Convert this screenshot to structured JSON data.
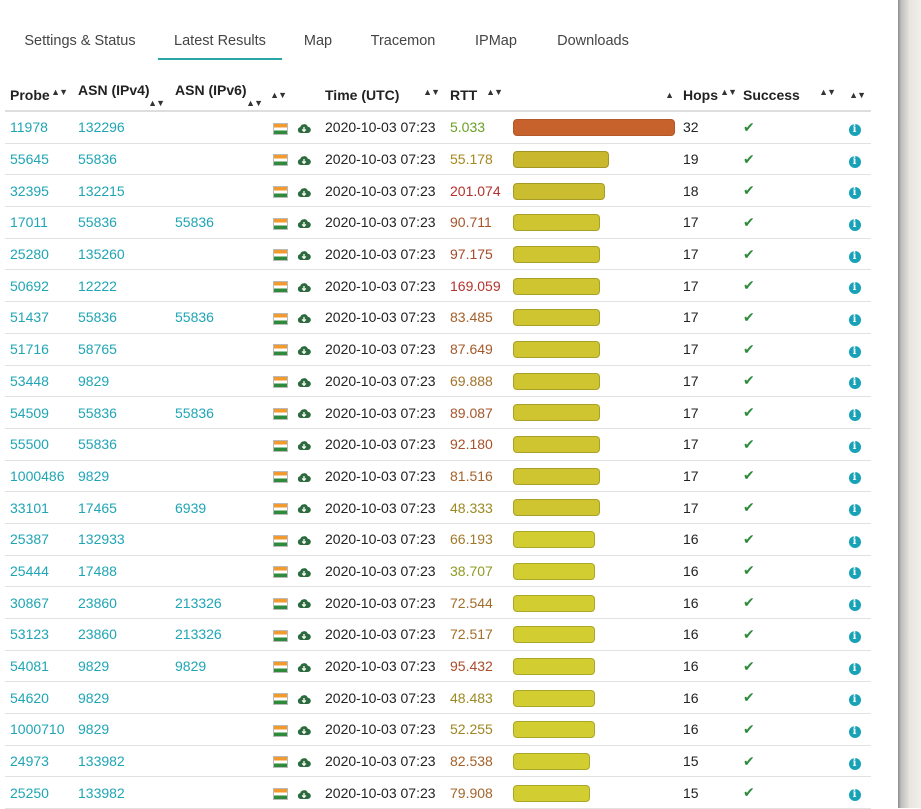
{
  "tabs": [
    {
      "label": "Settings & Status",
      "active": false
    },
    {
      "label": "Latest Results",
      "active": true
    },
    {
      "label": "Map",
      "active": false
    },
    {
      "label": "Tracemon",
      "active": false
    },
    {
      "label": "IPMap",
      "active": false
    },
    {
      "label": "Downloads",
      "active": false
    }
  ],
  "table": {
    "headers": {
      "probe": "Probe",
      "asn4": "ASN (IPv4)",
      "asn6": "ASN (IPv6)",
      "time": "Time (UTC)",
      "rtt": "RTT",
      "hops": "Hops",
      "success": "Success"
    },
    "sort_indicator": "▲▼",
    "sorted_indicator": "▲",
    "check_glyph": "✔",
    "info_glyph": "i",
    "colors": {
      "link": "#1fa5b5",
      "tab_underline": "#2aa6a6",
      "success": "#2e8b3c",
      "info": "#17a2b8"
    },
    "rows": [
      {
        "probe": "11978",
        "probe_link": true,
        "asn4": "132296",
        "asn6": "",
        "time": "2020-10-03 07:23",
        "rtt": "5.033",
        "rtt_color": "#6aa024",
        "bar_color": "#c8622d",
        "bar_fraction": 1.0,
        "hops": "32"
      },
      {
        "probe": "55645",
        "probe_link": true,
        "asn4": "55836",
        "asn6": "",
        "time": "2020-10-03 07:23",
        "rtt": "55.178",
        "rtt_color": "#a6881e",
        "bar_color": "#c9b82e",
        "bar_fraction": 0.59,
        "hops": "19"
      },
      {
        "probe": "32395",
        "probe_link": true,
        "asn4": "132215",
        "asn6": "",
        "time": "2020-10-03 07:23",
        "rtt": "201.074",
        "rtt_color": "#b5302c",
        "bar_color": "#cbbd30",
        "bar_fraction": 0.56,
        "hops": "18"
      },
      {
        "probe": "17011",
        "probe_link": true,
        "asn4": "55836",
        "asn6": "55836",
        "time": "2020-10-03 07:23",
        "rtt": "90.711",
        "rtt_color": "#a6542a",
        "bar_color": "#cfc530",
        "bar_fraction": 0.53,
        "hops": "17"
      },
      {
        "probe": "25280",
        "probe_link": true,
        "asn4": "135260",
        "asn6": "",
        "time": "2020-10-03 07:23",
        "rtt": "97.175",
        "rtt_color": "#a84a2a",
        "bar_color": "#cfc530",
        "bar_fraction": 0.53,
        "hops": "17"
      },
      {
        "probe": "50692",
        "probe_link": true,
        "asn4": "12222",
        "asn6": "",
        "time": "2020-10-03 07:23",
        "rtt": "169.059",
        "rtt_color": "#b3352c",
        "bar_color": "#cfc530",
        "bar_fraction": 0.53,
        "hops": "17"
      },
      {
        "probe": "51437",
        "probe_link": true,
        "asn4": "55836",
        "asn6": "55836",
        "time": "2020-10-03 07:23",
        "rtt": "83.485",
        "rtt_color": "#a4602a",
        "bar_color": "#cfc530",
        "bar_fraction": 0.53,
        "hops": "17"
      },
      {
        "probe": "51716",
        "probe_link": true,
        "asn4": "58765",
        "asn6": "",
        "time": "2020-10-03 07:23",
        "rtt": "87.649",
        "rtt_color": "#a55a2a",
        "bar_color": "#cfc530",
        "bar_fraction": 0.53,
        "hops": "17"
      },
      {
        "probe": "53448",
        "probe_link": false,
        "asn4": "9829",
        "asn6": "",
        "time": "2020-10-03 07:23",
        "rtt": "69.888",
        "rtt_color": "#a4722a",
        "bar_color": "#cfc530",
        "bar_fraction": 0.53,
        "hops": "17"
      },
      {
        "probe": "54509",
        "probe_link": false,
        "asn4": "55836",
        "asn6": "55836",
        "time": "2020-10-03 07:23",
        "rtt": "89.087",
        "rtt_color": "#a6562a",
        "bar_color": "#cfc530",
        "bar_fraction": 0.53,
        "hops": "17"
      },
      {
        "probe": "55500",
        "probe_link": true,
        "asn4": "55836",
        "asn6": "",
        "time": "2020-10-03 07:23",
        "rtt": "92.180",
        "rtt_color": "#a7522a",
        "bar_color": "#cfc530",
        "bar_fraction": 0.53,
        "hops": "17"
      },
      {
        "probe": "1000486",
        "probe_link": true,
        "asn4": "9829",
        "asn6": "",
        "time": "2020-10-03 07:23",
        "rtt": "81.516",
        "rtt_color": "#a4622a",
        "bar_color": "#cfc530",
        "bar_fraction": 0.53,
        "hops": "17"
      },
      {
        "probe": "33101",
        "probe_link": true,
        "asn4": "17465",
        "asn6": "6939",
        "time": "2020-10-03 07:23",
        "rtt": "48.333",
        "rtt_color": "#9b8a22",
        "bar_color": "#cfc530",
        "bar_fraction": 0.53,
        "hops": "17"
      },
      {
        "probe": "25387",
        "probe_link": true,
        "asn4": "132933",
        "asn6": "",
        "time": "2020-10-03 07:23",
        "rtt": "66.193",
        "rtt_color": "#a27a28",
        "bar_color": "#d2cd30",
        "bar_fraction": 0.5,
        "hops": "16"
      },
      {
        "probe": "25444",
        "probe_link": true,
        "asn4": "17488",
        "asn6": "",
        "time": "2020-10-03 07:23",
        "rtt": "38.707",
        "rtt_color": "#8f9a22",
        "bar_color": "#d2cd30",
        "bar_fraction": 0.5,
        "hops": "16"
      },
      {
        "probe": "30867",
        "probe_link": true,
        "asn4": "23860",
        "asn6": "213326",
        "time": "2020-10-03 07:23",
        "rtt": "72.544",
        "rtt_color": "#a46e2a",
        "bar_color": "#d2cd30",
        "bar_fraction": 0.5,
        "hops": "16"
      },
      {
        "probe": "53123",
        "probe_link": true,
        "asn4": "23860",
        "asn6": "213326",
        "time": "2020-10-03 07:23",
        "rtt": "72.517",
        "rtt_color": "#a46e2a",
        "bar_color": "#d2cd30",
        "bar_fraction": 0.5,
        "hops": "16"
      },
      {
        "probe": "54081",
        "probe_link": true,
        "asn4": "9829",
        "asn6": "9829",
        "time": "2020-10-03 07:23",
        "rtt": "95.432",
        "rtt_color": "#a84c2a",
        "bar_color": "#d2cd30",
        "bar_fraction": 0.5,
        "hops": "16"
      },
      {
        "probe": "54620",
        "probe_link": true,
        "asn4": "9829",
        "asn6": "",
        "time": "2020-10-03 07:23",
        "rtt": "48.483",
        "rtt_color": "#9b8a22",
        "bar_color": "#d2cd30",
        "bar_fraction": 0.5,
        "hops": "16"
      },
      {
        "probe": "1000710",
        "probe_link": true,
        "asn4": "9829",
        "asn6": "",
        "time": "2020-10-03 07:23",
        "rtt": "52.255",
        "rtt_color": "#9d8622",
        "bar_color": "#d2cd30",
        "bar_fraction": 0.5,
        "hops": "16"
      },
      {
        "probe": "24973",
        "probe_link": true,
        "asn4": "133982",
        "asn6": "",
        "time": "2020-10-03 07:23",
        "rtt": "82.538",
        "rtt_color": "#a4612a",
        "bar_color": "#d2cd30",
        "bar_fraction": 0.47,
        "hops": "15"
      },
      {
        "probe": "25250",
        "probe_link": true,
        "asn4": "133982",
        "asn6": "",
        "time": "2020-10-03 07:23",
        "rtt": "79.908",
        "rtt_color": "#a3662a",
        "bar_color": "#d2cd30",
        "bar_fraction": 0.47,
        "hops": "15"
      }
    ]
  }
}
